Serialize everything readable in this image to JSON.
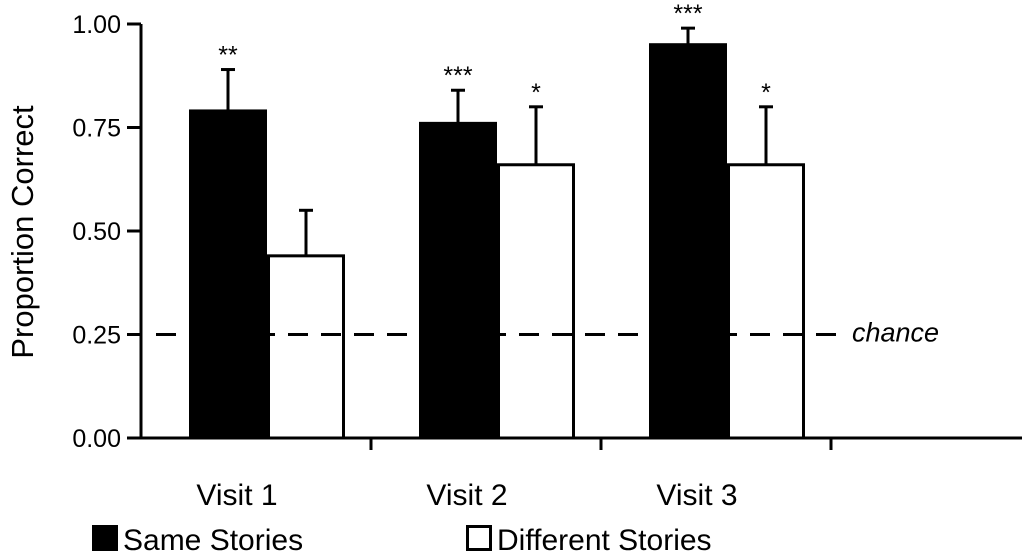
{
  "chart_data": {
    "type": "bar",
    "ylabel": "Proportion Correct",
    "xlabel": "",
    "ylim": [
      0,
      1
    ],
    "yticks": [
      "0.00",
      "0.25",
      "0.50",
      "0.75",
      "1.00"
    ],
    "categories": [
      "Visit 1",
      "Visit 2",
      "Visit 3"
    ],
    "series": [
      {
        "name": "Same Stories",
        "fill": "#000000",
        "values": [
          0.79,
          0.76,
          0.95
        ],
        "error": [
          0.1,
          0.08,
          0.04
        ],
        "significance": [
          "**",
          "***",
          "***"
        ]
      },
      {
        "name": "Different Stories",
        "fill": "#ffffff",
        "values": [
          0.44,
          0.66,
          0.66
        ],
        "error": [
          0.11,
          0.14,
          0.14
        ],
        "significance": [
          "",
          "*",
          "*"
        ]
      }
    ],
    "reference_line": {
      "value": 0.25,
      "label": "chance",
      "style": "dashed"
    },
    "legend_position": "bottom-left",
    "grid": false
  }
}
